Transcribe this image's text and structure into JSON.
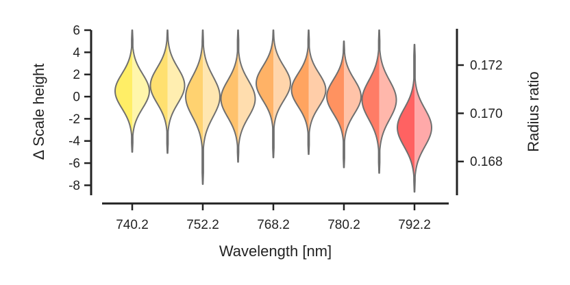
{
  "chart_data": {
    "type": "violin",
    "title": "",
    "xlabel": "Wavelength [nm]",
    "ylabel": "Δ Scale height",
    "y2label": "Radius ratio",
    "ylim": [
      -8.9,
      6.0
    ],
    "y_ticks": [
      6,
      4,
      2,
      0,
      -2,
      -4,
      -6,
      -8
    ],
    "y_tick_labels": [
      "6",
      "4",
      "2",
      "0",
      "-2",
      "-4",
      "-6",
      "-8"
    ],
    "y2lim": [
      0.1666,
      0.17345
    ],
    "y2_ticks": [
      0.172,
      0.17,
      0.168
    ],
    "y2_tick_labels": [
      "0.172",
      "0.170",
      "0.168"
    ],
    "x_tick_labels": [
      "740.2",
      "752.2",
      "768.2",
      "780.2",
      "792.2"
    ],
    "x_tick_violin_index": [
      1,
      3,
      5,
      7,
      9
    ],
    "split_violins": [
      {
        "index": 1,
        "color": "#ffee66",
        "y_min": -5.0,
        "y_max": 6.0,
        "peak": 0.5,
        "sigma": 1.55
      },
      {
        "index": 2,
        "color": "#ffe070",
        "y_min": -5.1,
        "y_max": 6.0,
        "peak": 1.0,
        "sigma": 1.6
      },
      {
        "index": 3,
        "color": "#ffd270",
        "y_min": -7.9,
        "y_max": 6.0,
        "peak": 0.0,
        "sigma": 1.8
      },
      {
        "index": 4,
        "color": "#ffc26c",
        "y_min": -5.9,
        "y_max": 6.0,
        "peak": -0.2,
        "sigma": 1.65
      },
      {
        "index": 5,
        "color": "#ffb266",
        "y_min": -5.5,
        "y_max": 6.0,
        "peak": 1.2,
        "sigma": 1.55
      },
      {
        "index": 6,
        "color": "#ffa460",
        "y_min": -5.2,
        "y_max": 6.0,
        "peak": 0.6,
        "sigma": 1.5
      },
      {
        "index": 7,
        "color": "#ff9260",
        "y_min": -6.4,
        "y_max": 5.0,
        "peak": 0.0,
        "sigma": 1.55
      },
      {
        "index": 8,
        "color": "#ff7c66",
        "y_min": -6.9,
        "y_max": 6.0,
        "peak": -0.3,
        "sigma": 1.75
      },
      {
        "index": 9,
        "color": "#ff6262",
        "y_min": -8.6,
        "y_max": 4.7,
        "peak": -2.8,
        "sigma": 1.7
      }
    ]
  }
}
